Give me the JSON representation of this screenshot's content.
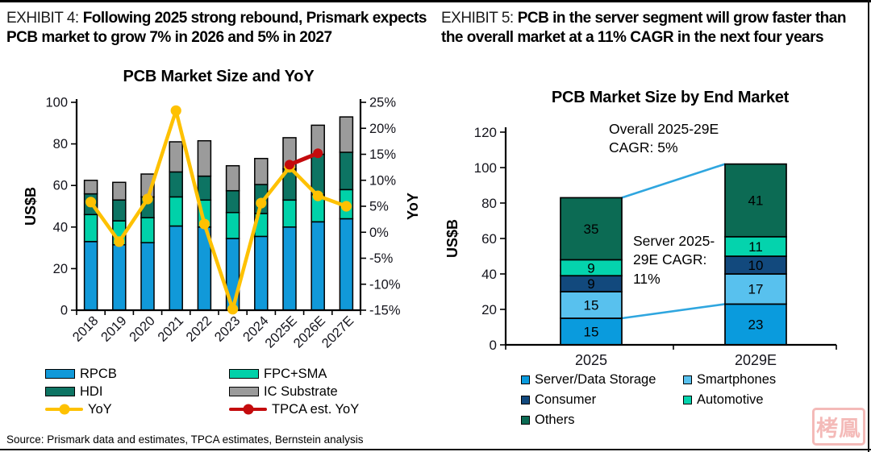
{
  "page": {
    "source": "Source: Prismark data and estimates, TPCA estimates, Bernstein analysis",
    "watermark": "栲鳯"
  },
  "exhibit4": {
    "label": "EXHIBIT 4:",
    "title": "Following 2025 strong rebound, Prismark expects PCB market to grow 7% in 2026 and 5% in 2027"
  },
  "exhibit5": {
    "label": "EXHIBIT 5:",
    "title": "PCB in the server segment will grow faster than the overall market at a 11% CAGR in the next four years"
  },
  "chart_data": [
    {
      "type": "bar",
      "subtype": "stacked-bars-with-yoy-lines",
      "title": "PCB Market Size and YoY",
      "ylabel_left": "US$B",
      "ylabel_right": "YoY",
      "ylim_left": [
        0,
        100
      ],
      "yticks_left": [
        0,
        20,
        40,
        60,
        80,
        100
      ],
      "ylim_right": [
        -15,
        25
      ],
      "yticks_right": [
        25,
        20,
        15,
        10,
        5,
        0,
        -5,
        -10,
        -15
      ],
      "grid": false,
      "legend_position": "bottom",
      "categories": [
        "2018",
        "2019",
        "2020",
        "2021",
        "2022",
        "2023",
        "2024",
        "2025E",
        "2026E",
        "2027E"
      ],
      "series": [
        {
          "name": "RPCB",
          "color": "#1199d9",
          "values": [
            33,
            31.5,
            32.5,
            40.5,
            40,
            34.5,
            35.5,
            40,
            42.5,
            44
          ]
        },
        {
          "name": "FPC+SMA",
          "color": "#00d1a9",
          "values": [
            13,
            11.5,
            12,
            14,
            13,
            12.5,
            11,
            13,
            13,
            14
          ]
        },
        {
          "name": "HDI",
          "color": "#0d7463",
          "values": [
            10,
            10,
            10,
            12,
            11.5,
            10.5,
            14,
            15,
            19.5,
            18
          ]
        },
        {
          "name": "IC Substrate",
          "color": "#9b9b9b",
          "values": [
            6.5,
            8.5,
            11,
            14.5,
            17,
            12,
            12.5,
            15,
            14,
            17
          ]
        }
      ],
      "totals": [
        62.5,
        61.5,
        65.5,
        81,
        81.5,
        69.5,
        73,
        83,
        89,
        93
      ],
      "line_series": [
        {
          "name": "YoY",
          "color": "#fec101",
          "axis": "right",
          "unit": "%",
          "values": [
            5.8,
            -1.8,
            6.4,
            23.4,
            1.6,
            -14.8,
            5.6,
            12.5,
            7,
            5
          ]
        },
        {
          "name": "TPCA est. YoY",
          "color": "#c40b0d",
          "axis": "right",
          "unit": "%",
          "values": [
            null,
            null,
            null,
            null,
            null,
            null,
            null,
            13,
            15.2,
            null
          ]
        }
      ]
    },
    {
      "type": "bar",
      "subtype": "stacked",
      "title": "PCB Market Size by End Market",
      "ylabel": "US$B",
      "ylim": [
        0,
        120
      ],
      "yticks": [
        0,
        20,
        40,
        60,
        80,
        100,
        120
      ],
      "grid": false,
      "legend_position": "bottom",
      "categories": [
        "2025",
        "2029E"
      ],
      "series": [
        {
          "name": "Server/Data Storage",
          "color": "#0a9bdd",
          "values": [
            15,
            23
          ]
        },
        {
          "name": "Smartphones",
          "color": "#58c1ee",
          "values": [
            15,
            17
          ]
        },
        {
          "name": "Consumer",
          "color": "#12497d",
          "values": [
            9,
            10
          ]
        },
        {
          "name": "Automotive",
          "color": "#04d3ad",
          "values": [
            9,
            11
          ]
        },
        {
          "name": "Others",
          "color": "#0c6b54",
          "values": [
            35,
            41
          ]
        }
      ],
      "totals": [
        83,
        102
      ],
      "annotations": [
        "Overall 2025-29E CAGR: 5%",
        "Server 2025-29E CAGR: 11%"
      ],
      "connector_color": "#2fa6df"
    }
  ]
}
